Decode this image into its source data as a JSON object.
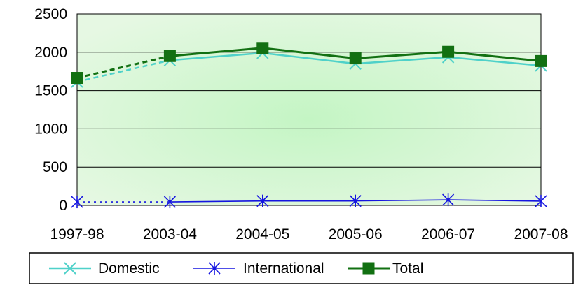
{
  "chart_data": {
    "type": "line",
    "title": "",
    "xlabel": "",
    "ylabel": "",
    "categories": [
      "1997-98",
      "2003-04",
      "2004-05",
      "2005-06",
      "2006-07",
      "2007-08"
    ],
    "ylim": [
      0,
      2500
    ],
    "yticks": [
      "0",
      "500",
      "1000",
      "1500",
      "2000",
      "2500"
    ],
    "grid": true,
    "legend_position": "bottom",
    "series": [
      {
        "name": "Domestic",
        "values": [
          1615,
          1895,
          1990,
          1850,
          1935,
          1825
        ],
        "color": "#4fd1c9",
        "marker": "x"
      },
      {
        "name": "International",
        "values": [
          45,
          45,
          58,
          58,
          72,
          55
        ],
        "color": "#1515e0",
        "marker": "asterisk"
      },
      {
        "name": "Total",
        "values": [
          1665,
          1950,
          2055,
          1920,
          2005,
          1885
        ],
        "color": "#127012",
        "marker": "square"
      }
    ]
  }
}
